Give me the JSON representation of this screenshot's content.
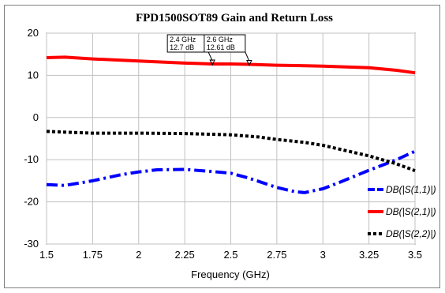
{
  "chart_data": {
    "type": "line",
    "title": "FPD1500SOT89 Gain and Return Loss",
    "xlabel": "Frequency (GHz)",
    "ylabel": "",
    "xlim": [
      1.5,
      3.5
    ],
    "ylim": [
      -30,
      20
    ],
    "x_ticks": [
      "1.5",
      "1.75",
      "2",
      "2.25",
      "2.5",
      "2.75",
      "3",
      "3.25",
      "3.5"
    ],
    "y_ticks": [
      "20",
      "10",
      "0",
      "-10",
      "-20",
      "-30"
    ],
    "grid": true,
    "legend_position": "right",
    "series": [
      {
        "name": "DB(|S(1,1)|)",
        "color": "#0000ff",
        "style": "dash-dot",
        "x": [
          1.5,
          1.6,
          1.75,
          1.9,
          2.0,
          2.1,
          2.25,
          2.4,
          2.5,
          2.6,
          2.75,
          2.85,
          2.9,
          3.0,
          3.1,
          3.25,
          3.4,
          3.5
        ],
        "y": [
          -15.9,
          -16.1,
          -15.0,
          -13.6,
          -12.9,
          -12.4,
          -12.3,
          -12.8,
          -13.2,
          -14.4,
          -16.6,
          -17.6,
          -17.8,
          -16.9,
          -15.2,
          -12.5,
          -10.0,
          -8.0
        ]
      },
      {
        "name": "DB(|S(2,1)|)",
        "color": "#ff0000",
        "style": "solid",
        "x": [
          1.5,
          1.6,
          1.75,
          2.0,
          2.25,
          2.4,
          2.5,
          2.6,
          2.75,
          3.0,
          3.25,
          3.4,
          3.5
        ],
        "y": [
          14.2,
          14.3,
          13.9,
          13.4,
          12.9,
          12.7,
          12.7,
          12.61,
          12.4,
          12.2,
          11.8,
          11.2,
          10.6
        ]
      },
      {
        "name": "DB(|S(2,2)|)",
        "color": "#000000",
        "style": "dotted",
        "x": [
          1.5,
          1.75,
          2.0,
          2.25,
          2.5,
          2.65,
          2.75,
          2.9,
          3.0,
          3.1,
          3.25,
          3.4,
          3.5
        ],
        "y": [
          -3.3,
          -3.7,
          -3.7,
          -3.8,
          -4.1,
          -4.6,
          -5.2,
          -5.9,
          -6.6,
          -7.6,
          -9.1,
          -11.0,
          -12.6
        ]
      }
    ],
    "markers": [
      {
        "x": 2.4,
        "y": 12.7,
        "line1": "2.4 GHz",
        "line2": "12.7 dB"
      },
      {
        "x": 2.6,
        "y": 12.61,
        "line1": "2.6 GHz",
        "line2": "12.61 dB"
      }
    ]
  }
}
